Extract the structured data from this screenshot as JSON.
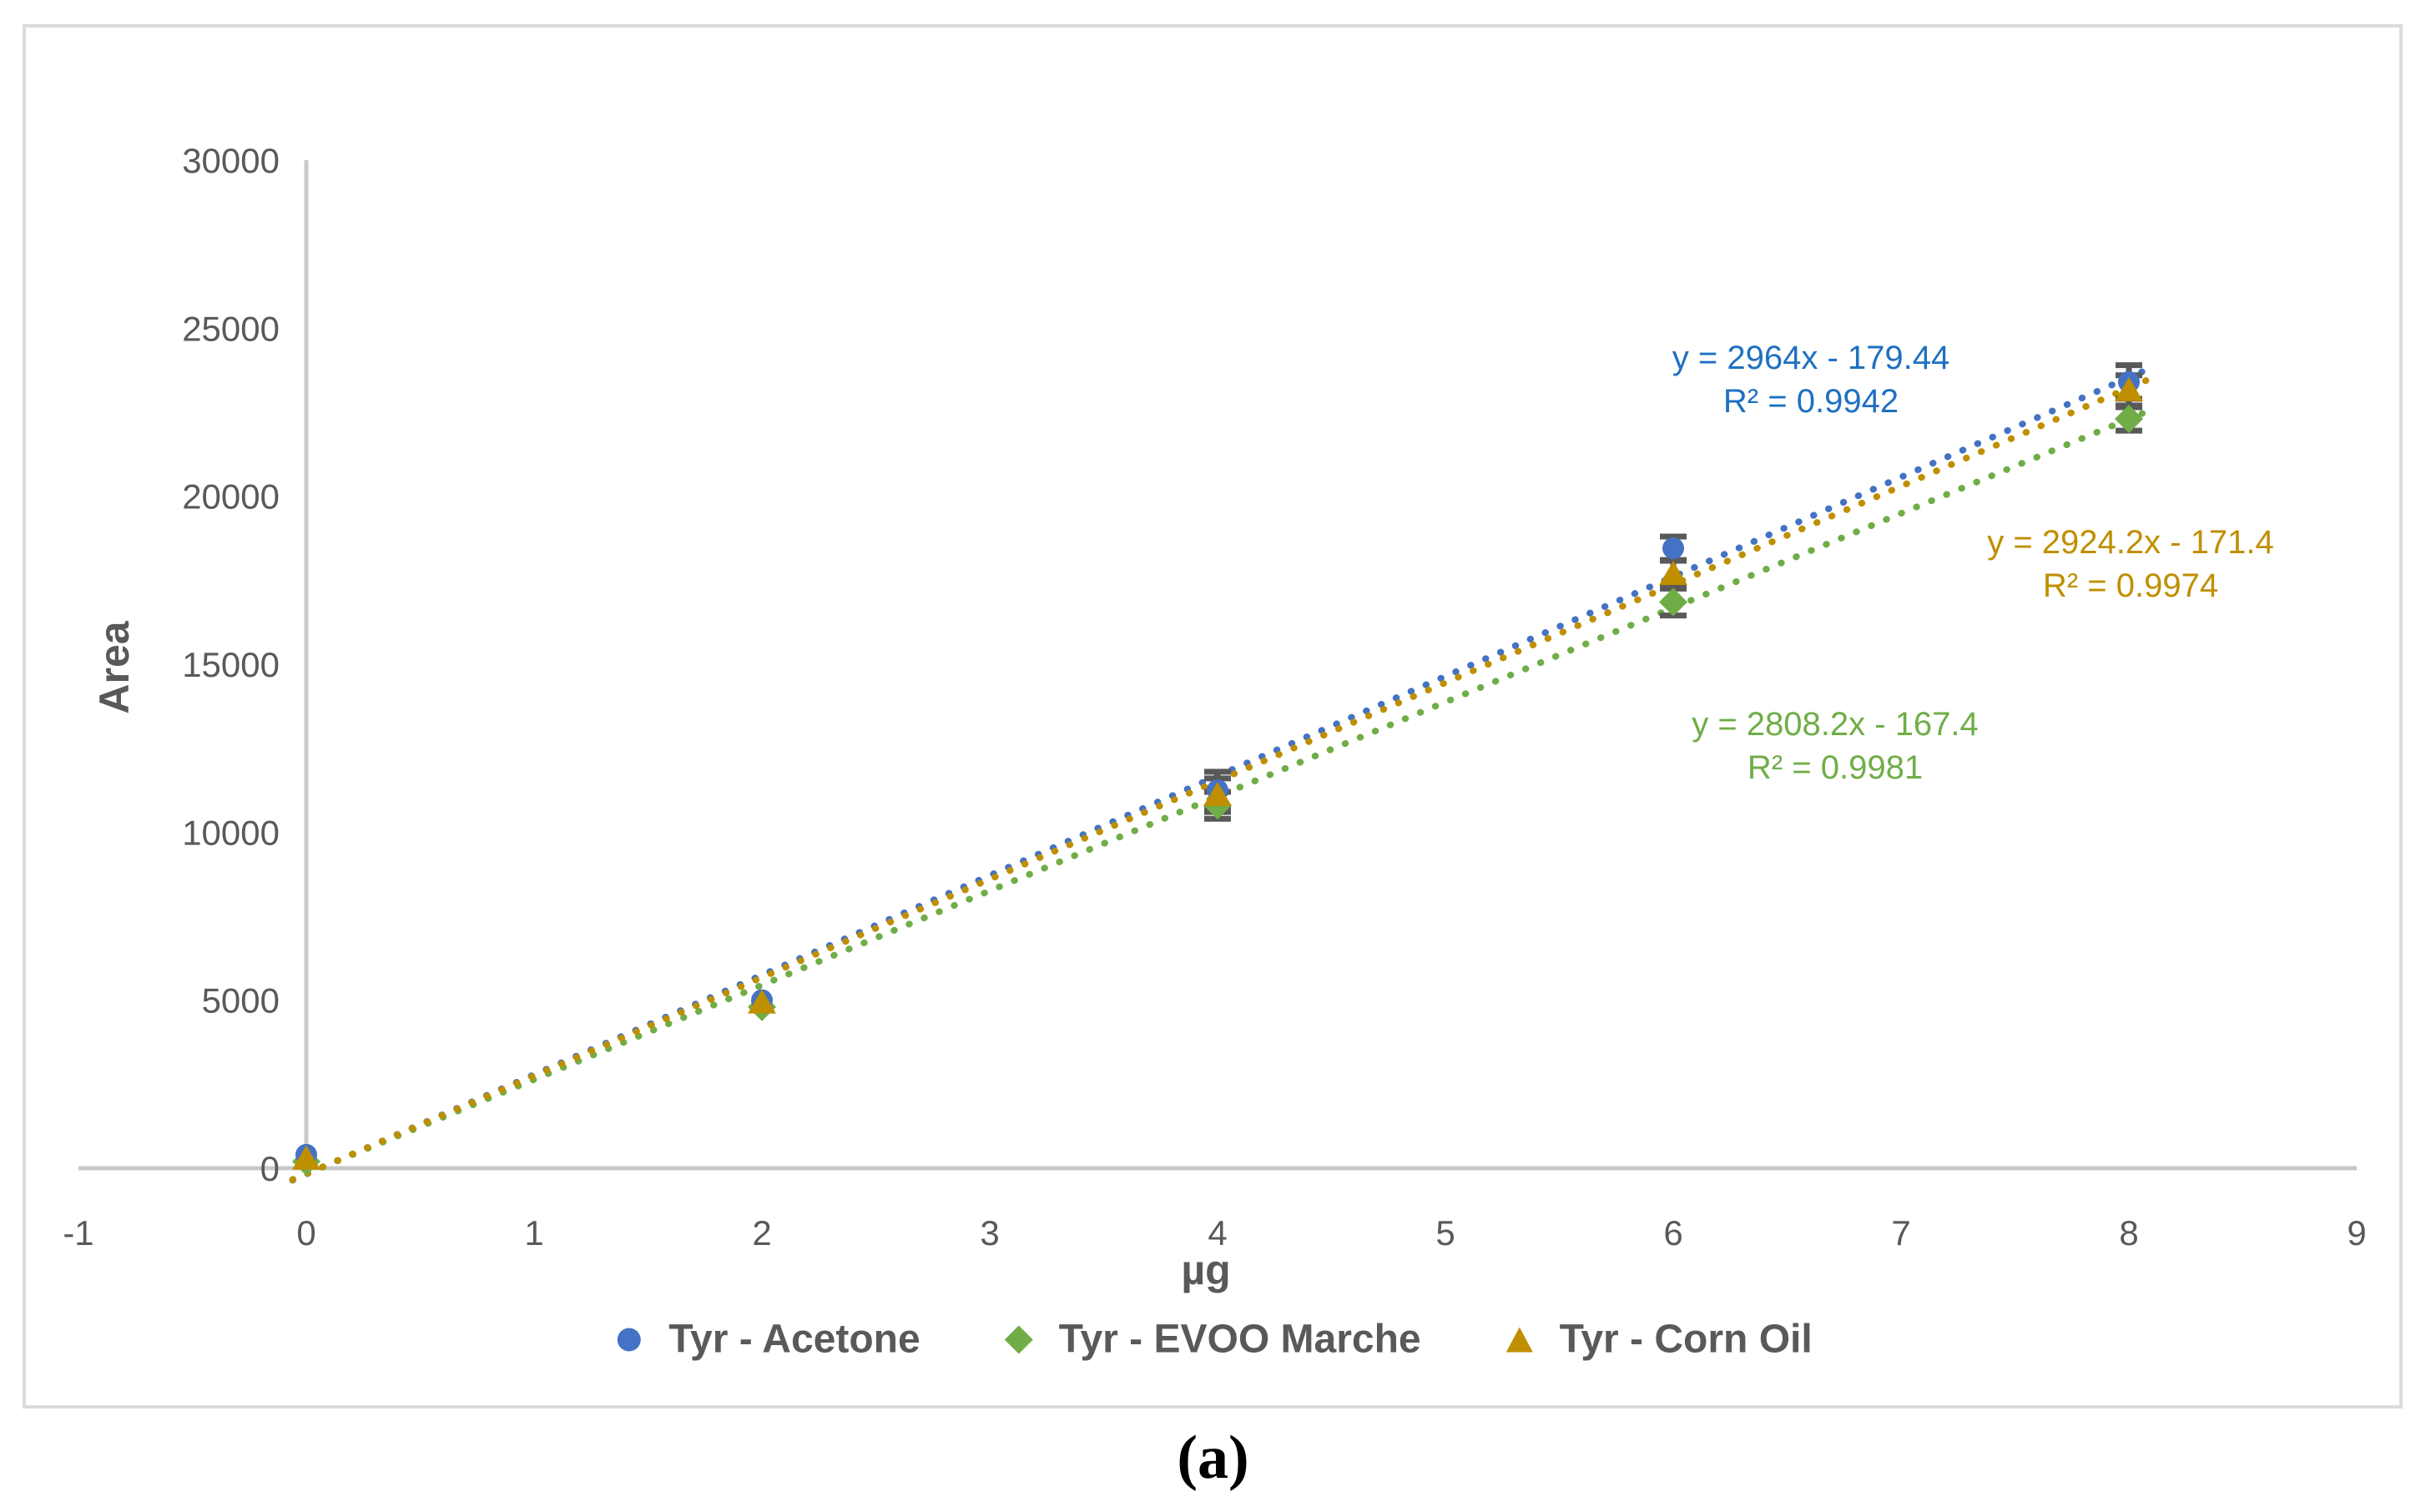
{
  "figure": {
    "caption": "(a)"
  },
  "chart_data": {
    "type": "scatter",
    "title": "",
    "xlabel": "µg",
    "ylabel": "Area",
    "xlim": [
      -1,
      9
    ],
    "ylim": [
      0,
      30000
    ],
    "x_ticks": [
      -1,
      0,
      1,
      2,
      3,
      4,
      5,
      6,
      7,
      8,
      9
    ],
    "y_ticks": [
      0,
      5000,
      10000,
      15000,
      20000,
      25000,
      30000
    ],
    "grid": false,
    "legend_position": "bottom",
    "colors": {
      "frame": "#DBDBDB",
      "axis": "#C9C9C9",
      "text": "#595959",
      "error_bar": "#595959"
    },
    "x": [
      0,
      2,
      4,
      6,
      8
    ],
    "series": [
      {
        "name": "Tyr - Acetone",
        "marker": "circle",
        "color": "#4472C4",
        "values": [
          400,
          5000,
          11250,
          18450,
          23400
        ],
        "yerr": [
          0,
          0,
          550,
          350,
          500
        ],
        "trend": {
          "slope": 2964,
          "intercept": -179.44,
          "r2": 0.9942,
          "eq_label": "y = 2964x - 179.44",
          "r2_label": "R² = 0.9942",
          "label_color": "#1F70C1",
          "label_x": 2170,
          "label_y": 403
        }
      },
      {
        "name": "Tyr - EVOO Marche",
        "marker": "diamond",
        "color": "#70AD47",
        "values": [
          200,
          4800,
          10800,
          16850,
          22300
        ],
        "yerr": [
          0,
          0,
          400,
          400,
          350
        ],
        "trend": {
          "slope": 2808.2,
          "intercept": -167.4,
          "r2": 0.9981,
          "eq_label": "y = 2808.2x - 167.4",
          "r2_label": "R² = 0.9981",
          "label_color": "#70AD47",
          "label_x": 2199,
          "label_y": 842
        }
      },
      {
        "name": "Tyr - Corn Oil",
        "marker": "triangle",
        "color": "#BF8F00",
        "values": [
          280,
          4925,
          11100,
          17680,
          23150
        ],
        "yerr": [
          0,
          0,
          500,
          400,
          450
        ],
        "trend": {
          "slope": 2924.2,
          "intercept": -171.4,
          "r2": 0.9974,
          "eq_label": "y = 2924.2x - 171.4",
          "r2_label": "R² = 0.9974",
          "label_color": "#BF8F00",
          "label_x": 2553,
          "label_y": 624
        }
      }
    ]
  }
}
